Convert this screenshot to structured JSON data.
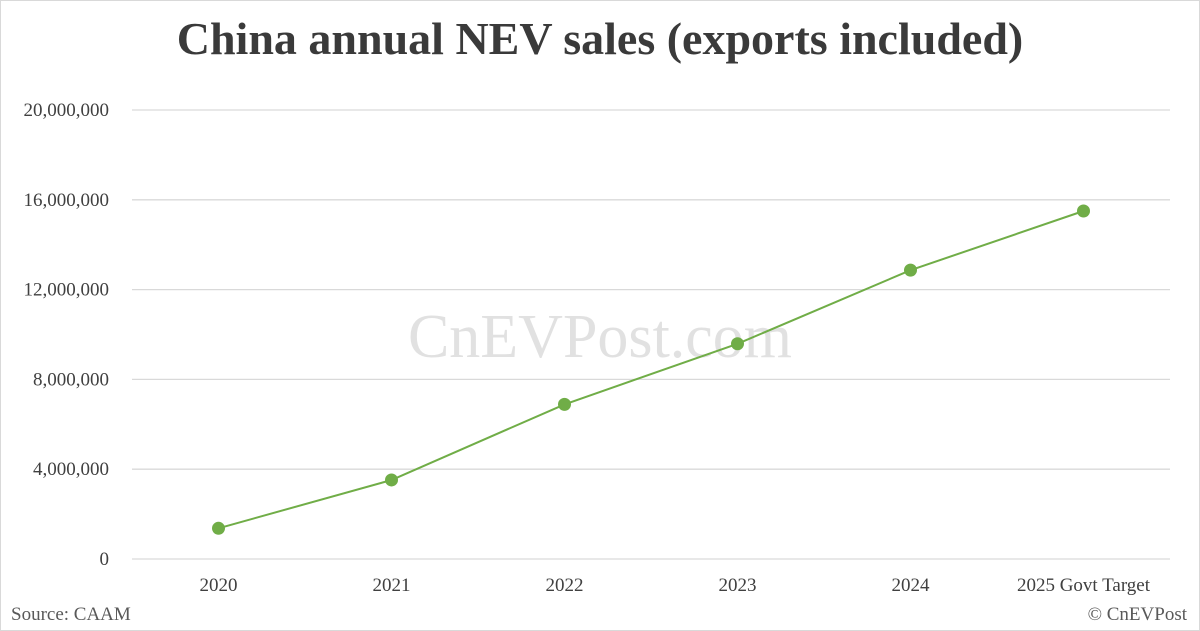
{
  "title": "China annual NEV sales (exports included)",
  "watermark": "CnEVPost.com",
  "source": "Source: CAAM",
  "credit": "© CnEVPost",
  "colors": {
    "line": "#70AD47",
    "marker": "#70AD47",
    "grid": "#d9d9d9",
    "text": "#404040"
  },
  "chart_data": {
    "type": "line",
    "title": "China annual NEV sales (exports included)",
    "xlabel": "",
    "ylabel": "",
    "categories": [
      "2020",
      "2021",
      "2022",
      "2023",
      "2024",
      "2025 Govt Target"
    ],
    "series": [
      {
        "name": "China annual NEV sales",
        "values": [
          1367000,
          3521000,
          6887000,
          9587000,
          12866000,
          15500000
        ]
      }
    ],
    "ylim": [
      0,
      20000000
    ],
    "yticks": [
      0,
      4000000,
      8000000,
      12000000,
      16000000,
      20000000
    ],
    "ytick_labels": [
      "0",
      "4,000,000",
      "8,000,000",
      "12,000,000",
      "16,000,000",
      "20,000,000"
    ],
    "grid": "horizontal",
    "legend": "none",
    "annotations": [
      "Source: CAAM",
      "© CnEVPost",
      "CnEVPost.com (watermark)"
    ]
  }
}
